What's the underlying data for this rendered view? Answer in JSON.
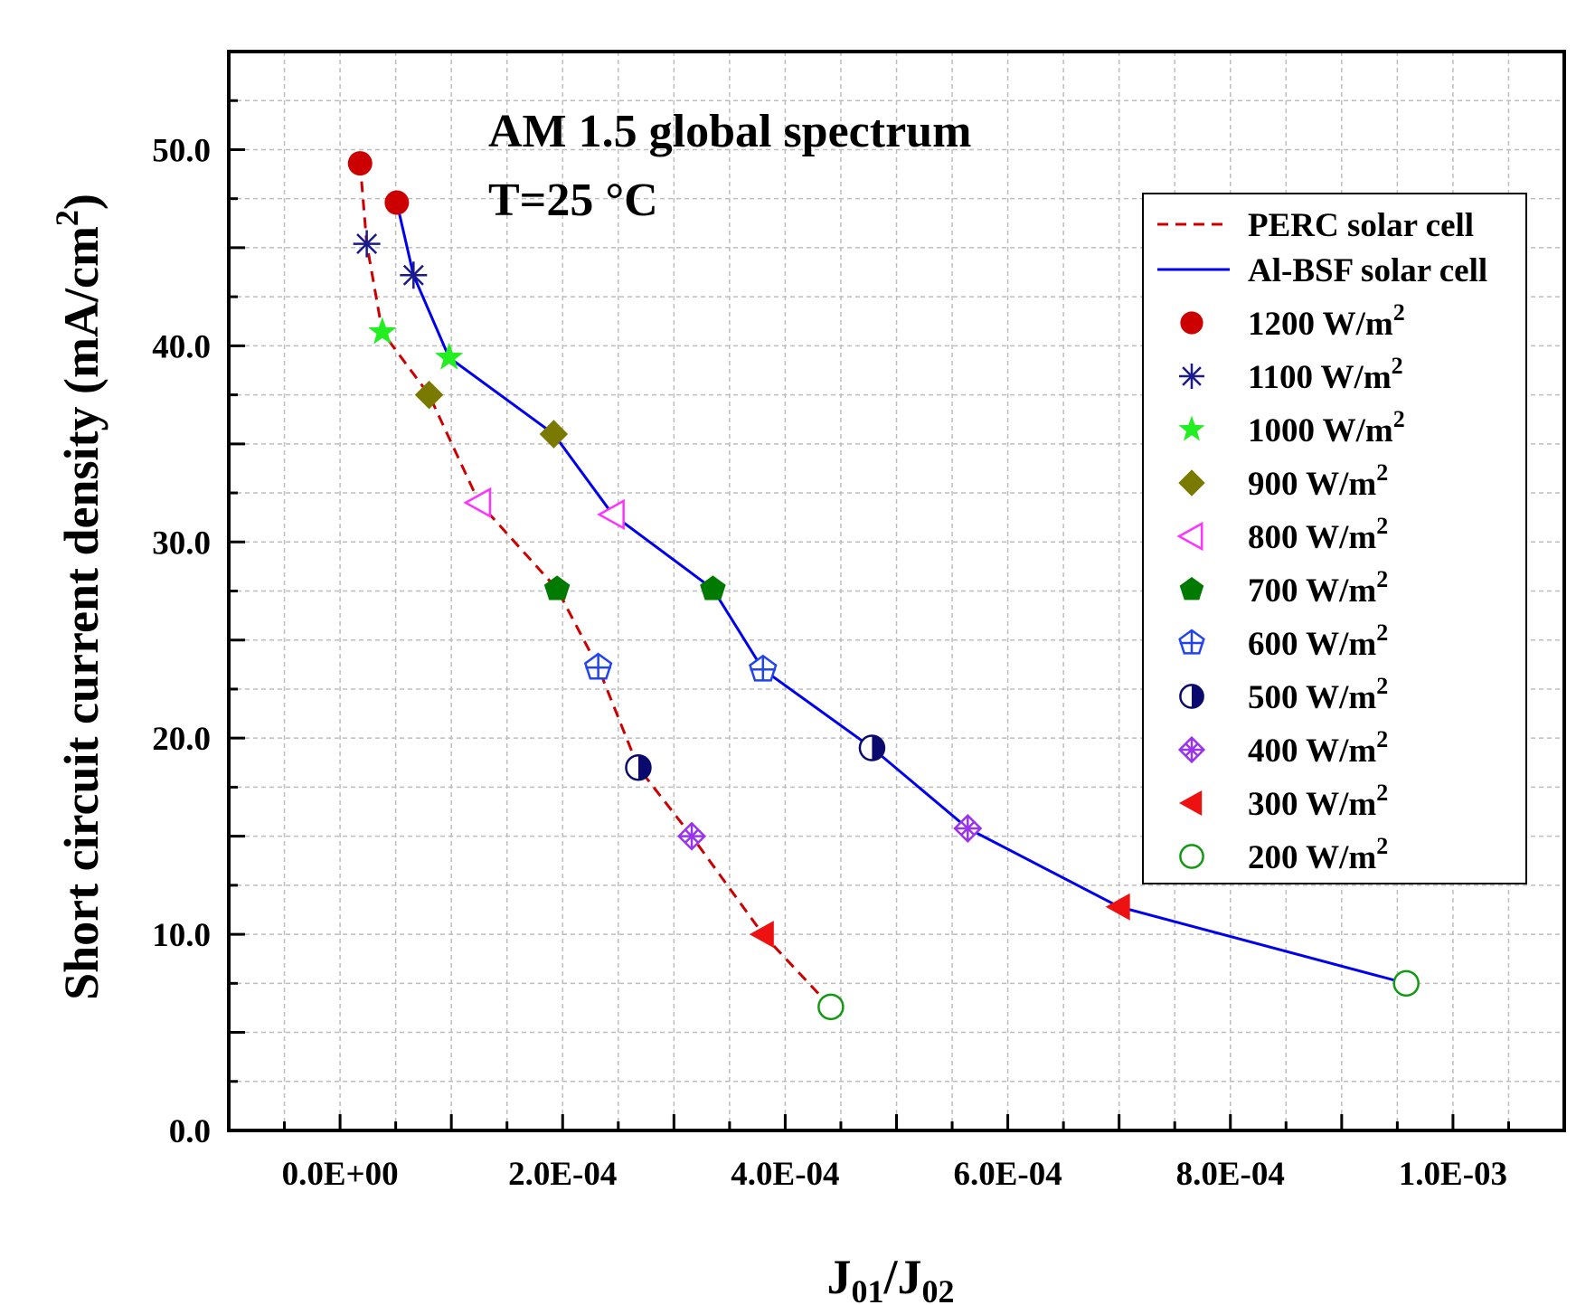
{
  "chart_data": {
    "type": "line",
    "annotations": [
      "AM 1.5 global spectrum",
      "T=25 °C"
    ],
    "xlabel": {
      "main": "J",
      "sub1": "01",
      "sep": "/",
      "main2": "J",
      "sub2": "02"
    },
    "ylabel": {
      "text": "Short circuit current density (mA/cm",
      "sup": "2",
      "close": ")"
    },
    "xlim": [
      -0.0001,
      0.0011
    ],
    "ylim": [
      0,
      55
    ],
    "x_ticks": [
      {
        "value": 0.0,
        "label": "0.0E+00"
      },
      {
        "value": 0.0002,
        "label": "2.0E-04"
      },
      {
        "value": 0.0004,
        "label": "4.0E-04"
      },
      {
        "value": 0.0006,
        "label": "6.0E-04"
      },
      {
        "value": 0.0008,
        "label": "8.0E-04"
      },
      {
        "value": 0.001,
        "label": "1.0E-03"
      }
    ],
    "y_ticks": [
      {
        "value": 0,
        "label": "0.0"
      },
      {
        "value": 10,
        "label": "10.0"
      },
      {
        "value": 20,
        "label": "20.0"
      },
      {
        "value": 30,
        "label": "30.0"
      },
      {
        "value": 40,
        "label": "40.0"
      },
      {
        "value": 50,
        "label": "50.0"
      }
    ],
    "series": [
      {
        "name": "PERC solar cell",
        "color": "#cc0000",
        "dash": true,
        "x": [
          1.8e-05,
          2.4e-05,
          3.8e-05,
          8e-05,
          0.000125,
          0.000195,
          0.000232,
          0.000268,
          0.000316,
          0.00038,
          0.000441
        ],
        "y": [
          49.3,
          45.2,
          40.7,
          37.5,
          32.0,
          27.6,
          23.6,
          18.5,
          15.0,
          10.0,
          6.3
        ]
      },
      {
        "name": "Al-BSF solar cell",
        "color": "#0000ee",
        "dash": false,
        "x": [
          5.1e-05,
          6.6e-05,
          9.8e-05,
          0.000192,
          0.000245,
          0.000335,
          0.00038,
          0.000478,
          0.000564,
          0.0007,
          0.000958
        ],
        "y": [
          47.3,
          43.6,
          39.4,
          35.5,
          31.4,
          27.6,
          23.5,
          19.5,
          15.4,
          11.4,
          7.5
        ]
      }
    ],
    "irradiance_levels": [
      {
        "label": "1200 W/m",
        "sup": "2",
        "marker": "circle",
        "color": "#cc0000"
      },
      {
        "label": "1100 W/m",
        "sup": "2",
        "marker": "asterisk",
        "color": "#1a1a8a"
      },
      {
        "label": "1000 W/m",
        "sup": "2",
        "marker": "star",
        "color": "#22ee22"
      },
      {
        "label": "900 W/m",
        "sup": "2",
        "marker": "diamond",
        "color": "#7a7a00"
      },
      {
        "label": "800 W/m",
        "sup": "2",
        "marker": "triangle-left-open",
        "color": "#ff33ff"
      },
      {
        "label": "700 W/m",
        "sup": "2",
        "marker": "pentagon",
        "color": "#007a00"
      },
      {
        "label": "600 W/m",
        "sup": "2",
        "marker": "pentagon-plus",
        "color": "#2244ee"
      },
      {
        "label": "500 W/m",
        "sup": "2",
        "marker": "half-circle",
        "color": "#0a0a6e"
      },
      {
        "label": "400 W/m",
        "sup": "2",
        "marker": "square-x",
        "color": "#9933ee"
      },
      {
        "label": "300 W/m",
        "sup": "2",
        "marker": "triangle-left",
        "color": "#ee1111"
      },
      {
        "label": "200 W/m",
        "sup": "2",
        "marker": "circle-open",
        "color": "#119911"
      }
    ],
    "grid": true,
    "legend_position": "top-right"
  }
}
